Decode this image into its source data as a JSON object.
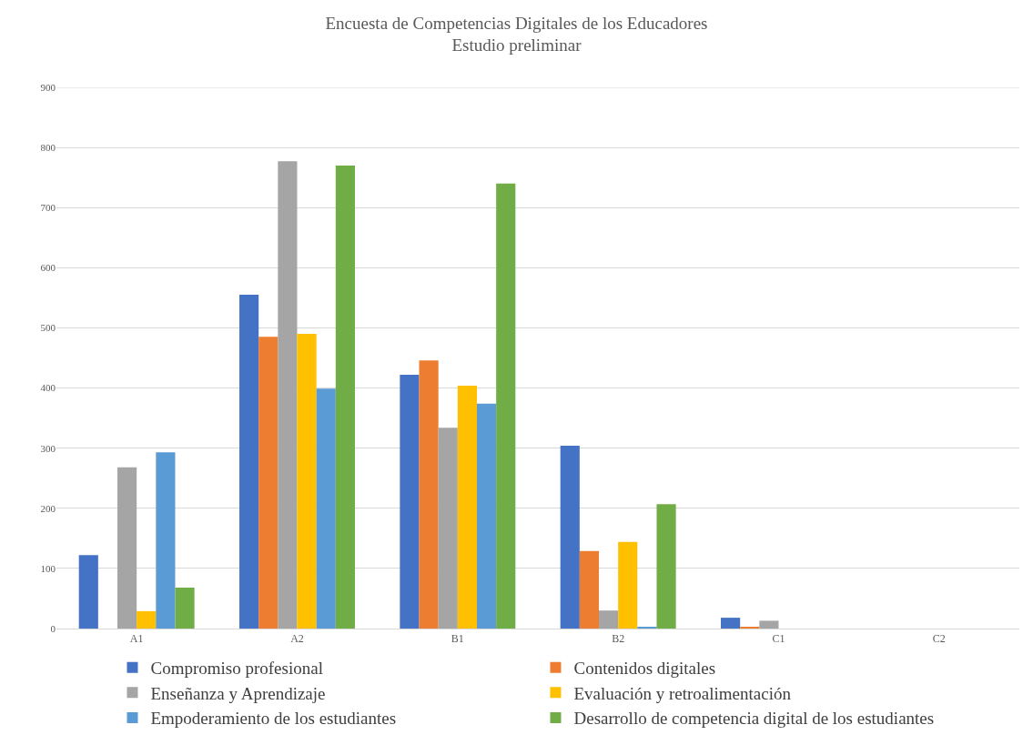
{
  "chart_data": {
    "type": "bar",
    "title": "Encuesta de Competencias Digitales de los Educadores",
    "subtitle": "Estudio preliminar",
    "categories": [
      "A1",
      "A2",
      "B1",
      "B2",
      "C1",
      "C2"
    ],
    "series": [
      {
        "name": "Compromiso profesional",
        "color": "#4472c4",
        "values": [
          122,
          555,
          422,
          304,
          18,
          0
        ]
      },
      {
        "name": "Contenidos digitales",
        "color": "#ed7d31",
        "values": [
          0,
          485,
          446,
          129,
          3,
          0
        ]
      },
      {
        "name": "Enseñanza y Aprendizaje",
        "color": "#a5a5a5",
        "values": [
          268,
          777,
          334,
          30,
          13,
          0
        ]
      },
      {
        "name": "Evaluación y retroalimentación",
        "color": "#ffc000",
        "values": [
          29,
          490,
          404,
          144,
          0,
          0
        ]
      },
      {
        "name": "Empoderamiento de los estudiantes",
        "color": "#5b9bd5",
        "values": [
          293,
          399,
          374,
          2,
          0,
          0
        ]
      },
      {
        "name": "Desarrollo de competencia digital de los estudiantes",
        "color": "#70ad47",
        "values": [
          68,
          770,
          740,
          207,
          0,
          0
        ]
      }
    ],
    "ylim": [
      0,
      900
    ],
    "yticks": [
      0,
      100,
      200,
      300,
      400,
      500,
      600,
      700,
      800,
      900
    ],
    "grid": "y",
    "legend": "bottom"
  }
}
